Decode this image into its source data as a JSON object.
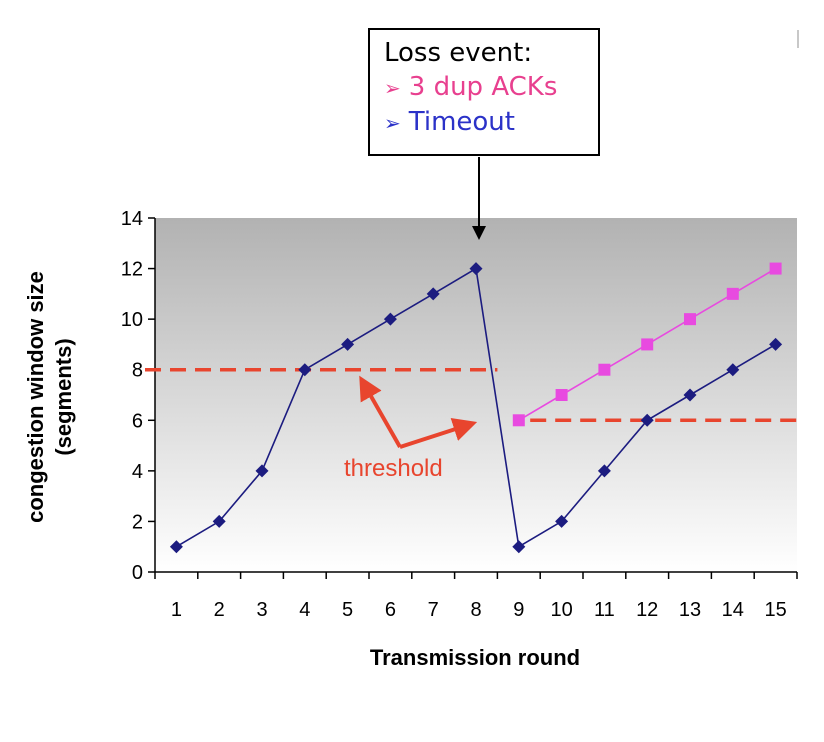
{
  "loss_box": {
    "title": "Loss event:",
    "items": [
      {
        "bullet": "➢",
        "label": "3 dup ACKs",
        "color": "#e8408f"
      },
      {
        "bullet": "➢",
        "label": "Timeout",
        "color": "#2b32c8"
      }
    ]
  },
  "threshold_label": "threshold",
  "chart_data": {
    "type": "line",
    "title": "",
    "xlabel": "Transmission round",
    "ylabel_lines": [
      "congestion window size",
      "(segments)"
    ],
    "ylim": [
      0,
      14
    ],
    "yticks": [
      0,
      2,
      4,
      6,
      8,
      10,
      12,
      14
    ],
    "xticks": [
      1,
      2,
      3,
      4,
      5,
      6,
      7,
      8,
      9,
      10,
      11,
      12,
      13,
      14,
      15
    ],
    "grid": false,
    "series": [
      {
        "marker": "diamond",
        "color": "#1c1c80",
        "x": [
          1,
          2,
          3,
          4,
          5,
          6,
          7,
          8,
          9,
          10,
          11,
          12,
          13,
          14,
          15
        ],
        "y": [
          1,
          2,
          4,
          8,
          9,
          10,
          11,
          12,
          1,
          2,
          4,
          6,
          7,
          8,
          9
        ]
      },
      {
        "marker": "square",
        "color": "#e84ae0",
        "x": [
          9,
          10,
          11,
          12,
          13,
          14,
          15
        ],
        "y": [
          6,
          7,
          8,
          9,
          10,
          11,
          12
        ]
      }
    ],
    "thresholds": [
      {
        "y": 8,
        "x_from": 0.5,
        "x_to": 8.5,
        "color": "#e8452e"
      },
      {
        "y": 6,
        "x_from": 9.5,
        "x_to": 15.5,
        "color": "#e8452e"
      }
    ]
  }
}
